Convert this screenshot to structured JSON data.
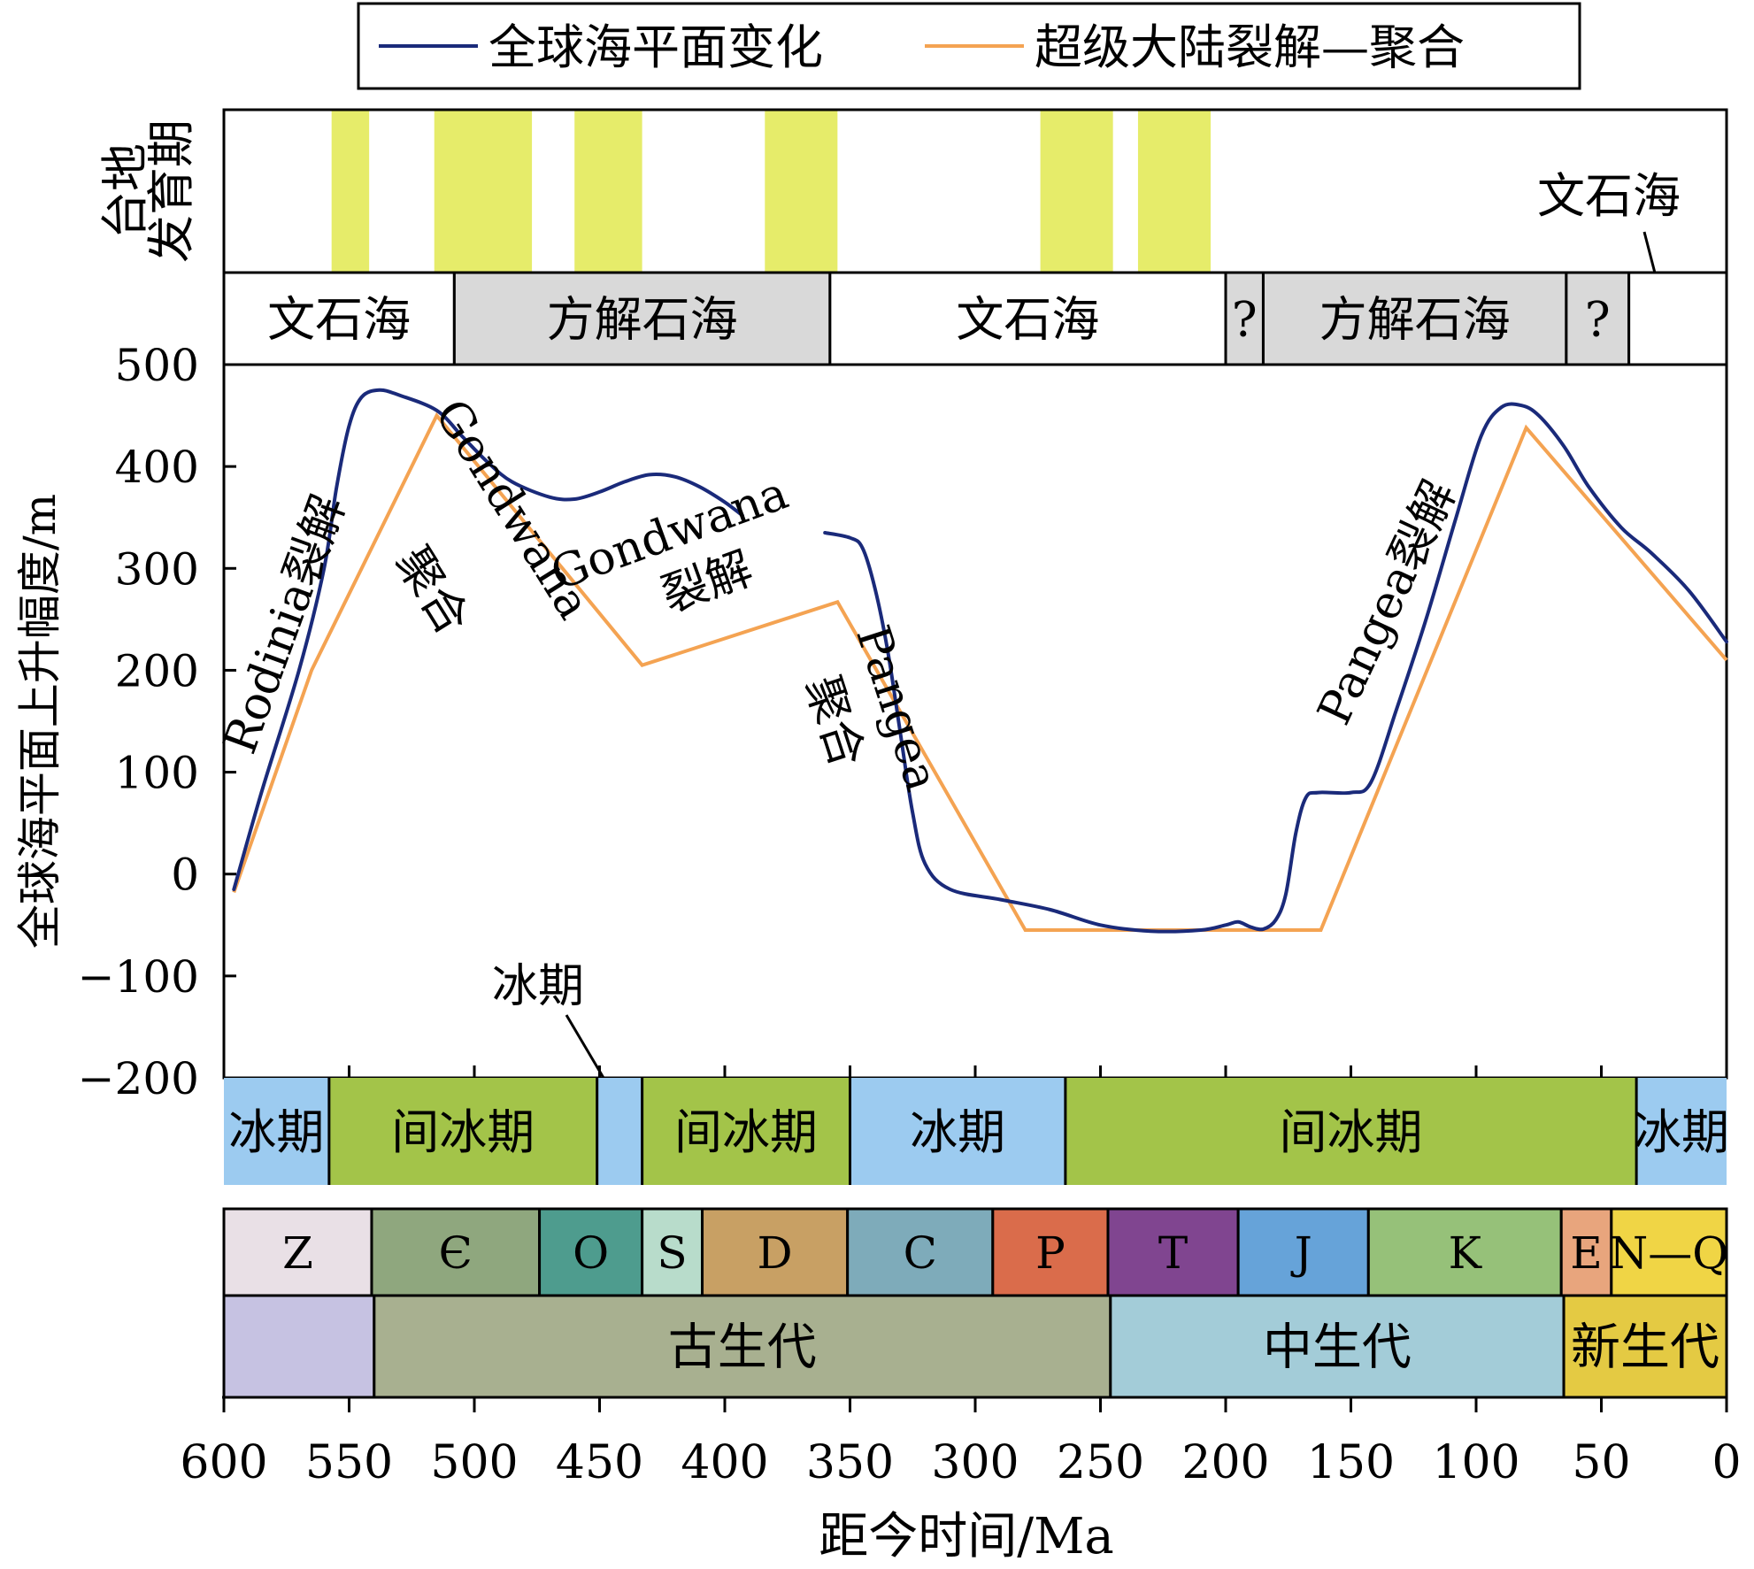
{
  "legend": [
    {
      "label": "全球海平面变化",
      "color": "#1a2a7a"
    },
    {
      "label": "超级大陆裂解—聚合",
      "color": "#f4a352"
    }
  ],
  "platform": {
    "title_line1": "台地",
    "title_line2": "发育期",
    "color": "#e6ec6a",
    "periods_ma": [
      [
        557,
        542
      ],
      [
        516,
        477
      ],
      [
        460,
        433
      ],
      [
        384,
        355
      ],
      [
        274,
        245
      ],
      [
        235,
        206
      ]
    ]
  },
  "oceans": {
    "callout_label": "文石海",
    "bands": [
      {
        "label": "文石海",
        "from": 600,
        "to": 508,
        "color": "#ffffff"
      },
      {
        "label": "方解石海",
        "from": 508,
        "to": 358,
        "color": "#d9d9d9"
      },
      {
        "label": "文石海",
        "from": 358,
        "to": 200,
        "color": "#ffffff"
      },
      {
        "label": "?",
        "from": 200,
        "to": 185,
        "color": "#d9d9d9"
      },
      {
        "label": "方解石海",
        "from": 185,
        "to": 64,
        "color": "#d9d9d9"
      },
      {
        "label": "?",
        "from": 64,
        "to": 39,
        "color": "#d9d9d9"
      },
      {
        "label": "",
        "from": 39,
        "to": 0,
        "color": "#ffffff"
      }
    ]
  },
  "chart_data": {
    "type": "line",
    "ylabel": "全球海平面上升幅度/m",
    "xlabel": "距今时间/Ma",
    "xlim": [
      600,
      0
    ],
    "ylim": [
      -200,
      500
    ],
    "y_ticks": [
      500,
      400,
      300,
      200,
      100,
      0,
      -100,
      -200
    ],
    "x_ticks": [
      600,
      550,
      500,
      450,
      400,
      350,
      300,
      250,
      200,
      150,
      100,
      50,
      0
    ],
    "series": [
      {
        "name": "全球海平面变化",
        "color": "#1a2a7a",
        "segments": [
          [
            [
              596,
              -15
            ],
            [
              585,
              80
            ],
            [
              570,
              200
            ],
            [
              560,
              300
            ],
            [
              555,
              380
            ],
            [
              550,
              440
            ],
            [
              545,
              468
            ],
            [
              538,
              475
            ],
            [
              530,
              470
            ],
            [
              515,
              455
            ],
            [
              505,
              430
            ],
            [
              495,
              405
            ],
            [
              485,
              385
            ],
            [
              470,
              370
            ],
            [
              460,
              368
            ],
            [
              450,
              375
            ],
            [
              440,
              385
            ],
            [
              430,
              392
            ],
            [
              420,
              390
            ],
            [
              410,
              380
            ],
            [
              400,
              365
            ],
            [
              393,
              352
            ]
          ],
          [
            [
              360,
              335
            ],
            [
              350,
              330
            ],
            [
              345,
              320
            ],
            [
              340,
              280
            ],
            [
              335,
              220
            ],
            [
              330,
              140
            ],
            [
              325,
              60
            ],
            [
              320,
              10
            ],
            [
              310,
              -15
            ],
            [
              290,
              -25
            ],
            [
              270,
              -35
            ],
            [
              250,
              -50
            ],
            [
              230,
              -56
            ],
            [
              210,
              -55
            ],
            [
              200,
              -50
            ],
            [
              195,
              -47
            ],
            [
              190,
              -52
            ],
            [
              185,
              -54
            ],
            [
              180,
              -45
            ],
            [
              176,
              -20
            ],
            [
              172,
              40
            ],
            [
              168,
              75
            ],
            [
              163,
              80
            ],
            [
              150,
              80
            ],
            [
              142,
              90
            ],
            [
              132,
              160
            ],
            [
              120,
              250
            ],
            [
              108,
              350
            ],
            [
              98,
              430
            ],
            [
              90,
              458
            ],
            [
              82,
              460
            ],
            [
              75,
              450
            ],
            [
              65,
              420
            ],
            [
              55,
              380
            ],
            [
              42,
              340
            ],
            [
              30,
              315
            ],
            [
              15,
              278
            ],
            [
              0,
              228
            ]
          ]
        ]
      },
      {
        "name": "超级大陆裂解—聚合",
        "color": "#f4a352",
        "points": [
          [
            596,
            -18
          ],
          [
            565,
            200
          ],
          [
            515,
            450
          ],
          [
            433,
            205
          ],
          [
            355,
            267
          ],
          [
            280,
            -55
          ],
          [
            162,
            -55
          ],
          [
            80,
            438
          ],
          [
            0,
            210
          ]
        ]
      }
    ],
    "annotations": [
      {
        "text": "Rodinia裂解",
        "x": 570,
        "y": 240,
        "rotate": -70
      },
      {
        "text": "Gondwana",
        "x": 490,
        "y": 350,
        "rotate": 58
      },
      {
        "text": "聚合",
        "x": 522,
        "y": 270,
        "rotate": 58
      },
      {
        "text": "Gondwana",
        "x": 420,
        "y": 320,
        "rotate": -20
      },
      {
        "text": "裂解",
        "x": 405,
        "y": 272,
        "rotate": -20
      },
      {
        "text": "Pangea",
        "x": 337,
        "y": 158,
        "rotate": 72
      },
      {
        "text": "聚合",
        "x": 362,
        "y": 145,
        "rotate": 72
      },
      {
        "text": "Pangea裂解",
        "x": 130,
        "y": 260,
        "rotate": -65
      }
    ]
  },
  "glacial": {
    "callout_label": "冰期",
    "bands": [
      {
        "label": "冰期",
        "from": 600,
        "to": 558,
        "color": "#9ccbf0"
      },
      {
        "label": "间冰期",
        "from": 558,
        "to": 451,
        "color": "#a3c449"
      },
      {
        "label": "",
        "from": 451,
        "to": 433,
        "color": "#9ccbf0"
      },
      {
        "label": "间冰期",
        "from": 433,
        "to": 350,
        "color": "#a3c449"
      },
      {
        "label": "冰期",
        "from": 350,
        "to": 264,
        "color": "#9ccbf0"
      },
      {
        "label": "间冰期",
        "from": 264,
        "to": 36,
        "color": "#a3c449"
      },
      {
        "label": "冰期",
        "from": 36,
        "to": 0,
        "color": "#9ccbf0"
      }
    ]
  },
  "periods": [
    {
      "label": "Z",
      "from": 600,
      "to": 541,
      "color": "#e9e0e6"
    },
    {
      "label": "Є",
      "from": 541,
      "to": 474,
      "color": "#8fa77e"
    },
    {
      "label": "O",
      "from": 474,
      "to": 433,
      "color": "#4e9c8e"
    },
    {
      "label": "S",
      "from": 433,
      "to": 409,
      "color": "#b8dccb"
    },
    {
      "label": "D",
      "from": 409,
      "to": 351,
      "color": "#c8a064"
    },
    {
      "label": "C",
      "from": 351,
      "to": 293,
      "color": "#7eabba"
    },
    {
      "label": "P",
      "from": 293,
      "to": 247,
      "color": "#da6c4b"
    },
    {
      "label": "T",
      "from": 247,
      "to": 195,
      "color": "#804590"
    },
    {
      "label": "J",
      "from": 195,
      "to": 143,
      "color": "#66a3d9"
    },
    {
      "label": "K",
      "from": 143,
      "to": 66,
      "color": "#96c179"
    },
    {
      "label": "E",
      "from": 66,
      "to": 46,
      "color": "#e8a57d"
    },
    {
      "label": "N—Q",
      "from": 46,
      "to": 0,
      "color": "#f0d545"
    }
  ],
  "eras": [
    {
      "label": "",
      "from": 600,
      "to": 540,
      "color": "#c6c2e2"
    },
    {
      "label": "古生代",
      "from": 540,
      "to": 246,
      "color": "#a8b090"
    },
    {
      "label": "中生代",
      "from": 246,
      "to": 65,
      "color": "#a3ccd8"
    },
    {
      "label": "新生代",
      "from": 65,
      "to": 0,
      "color": "#e4ca43"
    }
  ]
}
